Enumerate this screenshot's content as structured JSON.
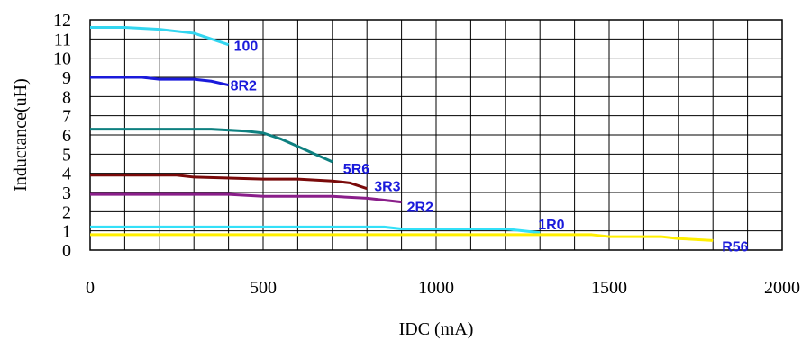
{
  "chart_data": {
    "type": "line",
    "title": "",
    "xlabel": "IDC (mA)",
    "ylabel": "Inductance(uH)",
    "xlim": [
      0,
      2000
    ],
    "ylim": [
      0,
      12
    ],
    "x_ticks": [
      0,
      500,
      1000,
      1500,
      2000
    ],
    "y_ticks": [
      0,
      1,
      2,
      3,
      4,
      5,
      6,
      7,
      8,
      9,
      10,
      11,
      12
    ],
    "x_grid_step": 100,
    "y_grid_step": 1,
    "grid": true,
    "label_color": "#1a1adb",
    "series": [
      {
        "name": "100",
        "color": "#33d6f0",
        "x": [
          0,
          100,
          200,
          300,
          350,
          400
        ],
        "y": [
          11.6,
          11.6,
          11.5,
          11.3,
          11.0,
          10.7
        ]
      },
      {
        "name": "8R2",
        "color": "#1a1adb",
        "x": [
          0,
          150,
          200,
          300,
          350,
          400
        ],
        "y": [
          9.0,
          9.0,
          8.9,
          8.9,
          8.8,
          8.6
        ]
      },
      {
        "name": "5R6",
        "color": "#0e8080",
        "x": [
          0,
          350,
          450,
          500,
          550,
          600,
          650,
          700
        ],
        "y": [
          6.3,
          6.3,
          6.2,
          6.1,
          5.8,
          5.4,
          5.0,
          4.6
        ]
      },
      {
        "name": "3R3",
        "color": "#7a0a0a",
        "x": [
          0,
          250,
          300,
          500,
          600,
          700,
          750,
          800
        ],
        "y": [
          3.9,
          3.9,
          3.8,
          3.7,
          3.7,
          3.6,
          3.5,
          3.2
        ]
      },
      {
        "name": "2R2",
        "color": "#8a1e8a",
        "x": [
          0,
          400,
          500,
          700,
          800,
          900
        ],
        "y": [
          2.9,
          2.9,
          2.8,
          2.8,
          2.7,
          2.5
        ]
      },
      {
        "name": "1R0",
        "color": "#33e0f8",
        "x": [
          0,
          850,
          900,
          1200,
          1250,
          1300
        ],
        "y": [
          1.2,
          1.2,
          1.1,
          1.1,
          1.0,
          0.9
        ]
      },
      {
        "name": "R56",
        "color": "#ffef00",
        "x": [
          0,
          1450,
          1500,
          1650,
          1700,
          1800
        ],
        "y": [
          0.8,
          0.8,
          0.7,
          0.7,
          0.6,
          0.5
        ]
      }
    ]
  }
}
